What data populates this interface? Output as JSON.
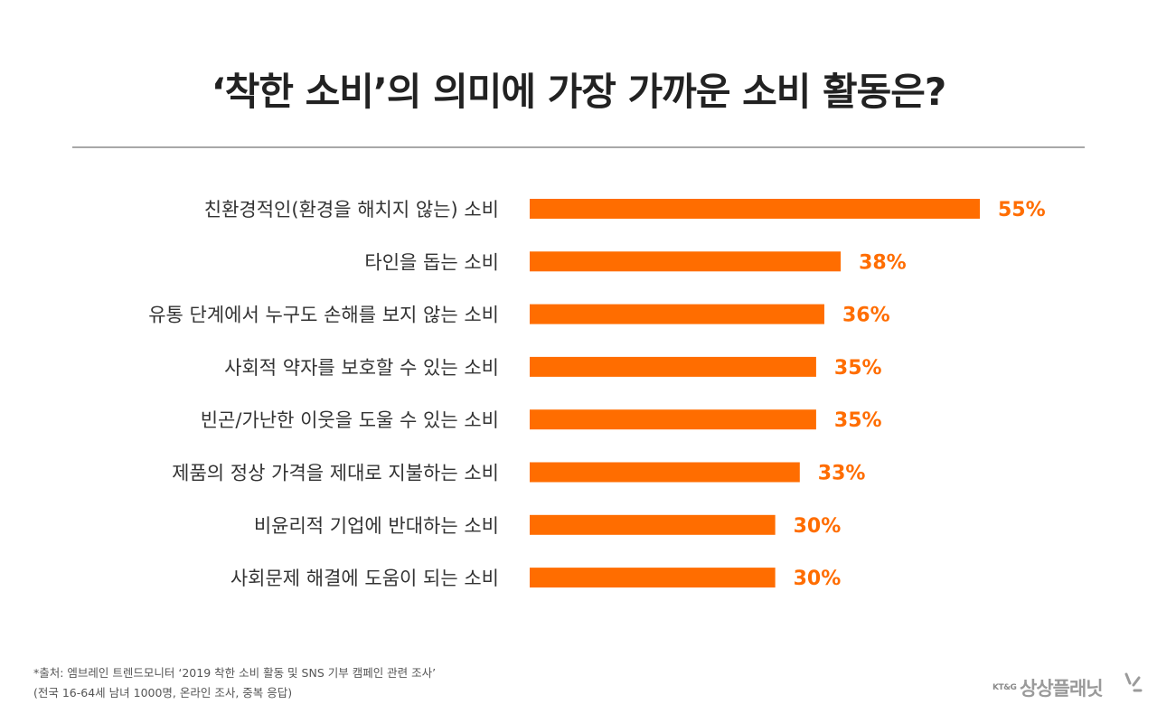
{
  "title": "‘착한 소비’의 의미에 가장 가까운 소비 활동은?",
  "colors": {
    "bar": "#ff6d00",
    "value_label": "#ff6d00",
    "category_label": "#333333"
  },
  "chart_data": {
    "type": "bar",
    "orientation": "horizontal",
    "categories": [
      "친환경적인(환경을 해치지 않는) 소비",
      "타인을 돕는 소비",
      "유통 단계에서 누구도 손해를 보지 않는 소비",
      "사회적 약자를 보호할 수 있는 소비",
      "빈곤/가난한 이웃을 도울 수 있는 소비",
      "제품의 정상 가격을 제대로 지불하는 소비",
      "비윤리적 기업에 반대하는 소비",
      "사회문제 해결에 도움이 되는 소비"
    ],
    "values": [
      55,
      38,
      36,
      35,
      35,
      33,
      30,
      30
    ],
    "value_labels": [
      "55%",
      "38%",
      "36%",
      "35%",
      "35%",
      "33%",
      "30%",
      "30%"
    ],
    "unit": "%",
    "xlim": [
      0,
      55
    ],
    "grid": false,
    "legend": "none"
  },
  "source": {
    "line1": "*출처: 엠브레인 트렌드모니터 ‘2019 착한 소비 활동 및 SNS 기부 캠페인 관련 조사’",
    "line2": "(전국 16-64세 남녀 1000명, 온라인 조사, 중복 응답)"
  },
  "logo": {
    "kt": "KT&G",
    "name": "상상플래닛"
  }
}
